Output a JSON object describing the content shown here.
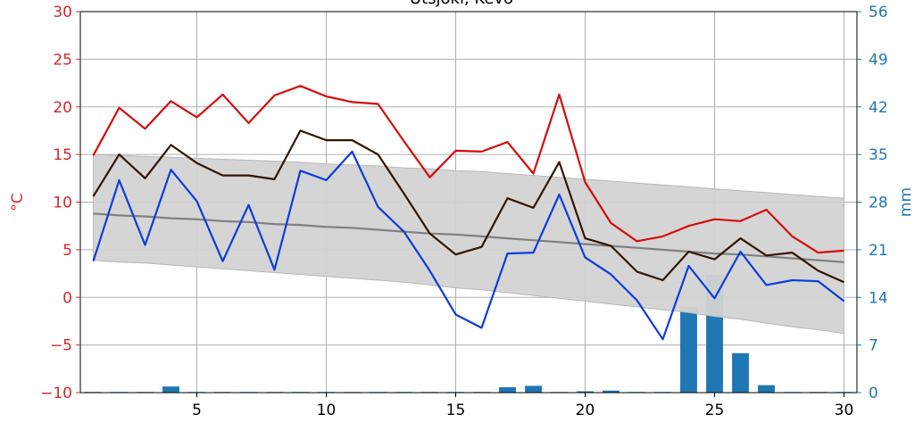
{
  "chart_data": {
    "type": "line",
    "title": "Utsjoki, Kevo",
    "x": [
      1,
      2,
      3,
      4,
      5,
      6,
      7,
      8,
      9,
      10,
      11,
      12,
      13,
      14,
      15,
      16,
      17,
      18,
      19,
      20,
      21,
      22,
      23,
      24,
      25,
      26,
      27,
      28,
      29,
      30
    ],
    "xlim": [
      0.5,
      30.5
    ],
    "xticks": [
      5,
      10,
      15,
      20,
      25,
      30
    ],
    "y_left": {
      "label": "°C",
      "ylim": [
        -10,
        30
      ],
      "ticks": [
        -10,
        -5,
        0,
        5,
        10,
        15,
        20,
        25,
        30
      ],
      "color": "#d62728"
    },
    "y_right": {
      "label": "mm",
      "ylim": [
        0,
        56
      ],
      "ticks": [
        0,
        7,
        14,
        21,
        28,
        35,
        42,
        49,
        56
      ],
      "color": "#1f77b4"
    },
    "grid": true,
    "series": [
      {
        "kind": "band",
        "axis": "left",
        "upper": [
          15.0,
          14.9,
          14.8,
          14.7,
          14.6,
          14.5,
          14.4,
          14.3,
          14.2,
          14.0,
          13.9,
          13.8,
          13.6,
          13.5,
          13.3,
          13.2,
          13.0,
          12.8,
          12.6,
          12.4,
          12.2,
          12.0,
          11.8,
          11.6,
          11.4,
          11.2,
          11.0,
          10.8,
          10.6,
          10.4
        ],
        "lower": [
          3.9,
          3.7,
          3.6,
          3.4,
          3.2,
          3.0,
          2.8,
          2.6,
          2.4,
          2.2,
          2.0,
          1.8,
          1.6,
          1.3,
          1.0,
          0.8,
          0.5,
          0.2,
          -0.1,
          -0.4,
          -0.7,
          -1.0,
          -1.3,
          -1.6,
          -2.0,
          -2.3,
          -2.7,
          -3.1,
          -3.4,
          -3.8
        ],
        "color": "#d3d3d3"
      },
      {
        "kind": "line",
        "axis": "left",
        "values": [
          8.8,
          8.6,
          8.5,
          8.3,
          8.2,
          8.0,
          7.9,
          7.7,
          7.6,
          7.4,
          7.3,
          7.1,
          6.9,
          6.7,
          6.6,
          6.4,
          6.2,
          6.0,
          5.8,
          5.6,
          5.4,
          5.2,
          5.0,
          4.8,
          4.6,
          4.5,
          4.3,
          4.1,
          3.9,
          3.7
        ],
        "color": "#808080"
      },
      {
        "kind": "line",
        "axis": "left",
        "values": [
          14.9,
          19.9,
          17.7,
          20.6,
          18.9,
          21.3,
          18.3,
          21.2,
          22.2,
          21.1,
          20.5,
          20.3,
          16.4,
          12.6,
          15.4,
          15.3,
          16.3,
          13.0,
          21.3,
          12.1,
          7.8,
          5.9,
          6.4,
          7.5,
          8.2,
          8.0,
          9.2,
          6.4,
          4.7,
          4.9
        ],
        "color": "#d40d0d"
      },
      {
        "kind": "line",
        "axis": "left",
        "values": [
          10.6,
          15.0,
          12.5,
          16.0,
          14.1,
          12.8,
          12.8,
          12.4,
          17.5,
          16.5,
          16.5,
          15.0,
          10.9,
          6.7,
          4.5,
          5.3,
          10.4,
          9.4,
          14.2,
          6.2,
          5.4,
          2.7,
          1.8,
          4.8,
          4.0,
          6.2,
          4.4,
          4.7,
          2.8,
          1.6
        ],
        "color": "#331500"
      },
      {
        "kind": "line",
        "axis": "left",
        "values": [
          3.8,
          12.3,
          5.5,
          13.4,
          10.1,
          3.8,
          9.7,
          2.9,
          13.3,
          12.3,
          15.3,
          9.5,
          6.9,
          2.8,
          -1.8,
          -3.2,
          4.6,
          4.7,
          10.8,
          4.2,
          2.4,
          -0.3,
          -4.4,
          3.3,
          -0.1,
          4.8,
          1.3,
          1.8,
          1.7,
          -0.4
        ],
        "color": "#0c3dda"
      },
      {
        "kind": "bar",
        "axis": "right",
        "values": [
          0.1,
          0.1,
          0.1,
          0.9,
          0.1,
          0.1,
          0.1,
          0.1,
          0.1,
          0.1,
          0.1,
          0.1,
          0.1,
          0.1,
          0.1,
          0.1,
          0.8,
          1.0,
          0.1,
          0.2,
          0.3,
          0.1,
          0.1,
          12.6,
          17.3,
          5.8,
          1.1,
          0.1,
          0.1,
          0.1
        ],
        "color": "#1f77b4"
      }
    ]
  }
}
